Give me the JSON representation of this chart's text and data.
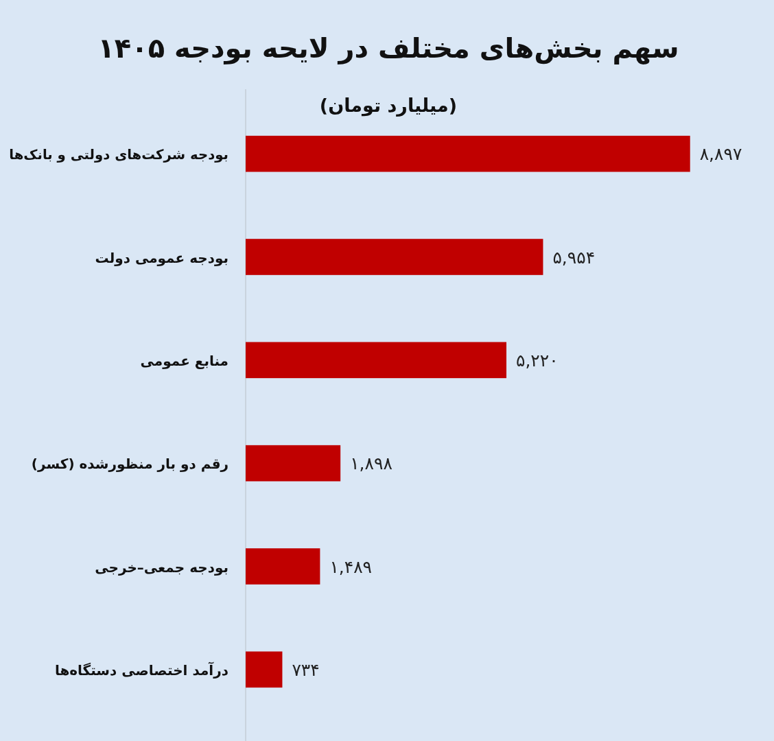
{
  "chart_data": {
    "type": "bar",
    "orientation": "horizontal",
    "title": "سهم بخش‌های مختلف در لایحه بودجه ۱۴۰۵",
    "subtitle": "(میلیارد تومان)",
    "categories": [
      "بودجه شرکت‌های دولتی و بانک‌ها",
      "بودجه عمومی دولت",
      "منابع عمومی",
      "رقم دو بار منظورشده (کسر)",
      "بودجه جمعی–خرجی",
      "درآمد اختصاصی دستگاه‌ها"
    ],
    "values": [
      8897,
      5954,
      5220,
      1898,
      1489,
      734
    ],
    "color": "#c00000",
    "value_labels": [
      "۸,۸۹۷",
      "۵,۹۵۴",
      "۵,۲۲۰",
      "۱,۸۹۸",
      "۱,۴۸۹",
      "۷۳۴"
    ]
  }
}
